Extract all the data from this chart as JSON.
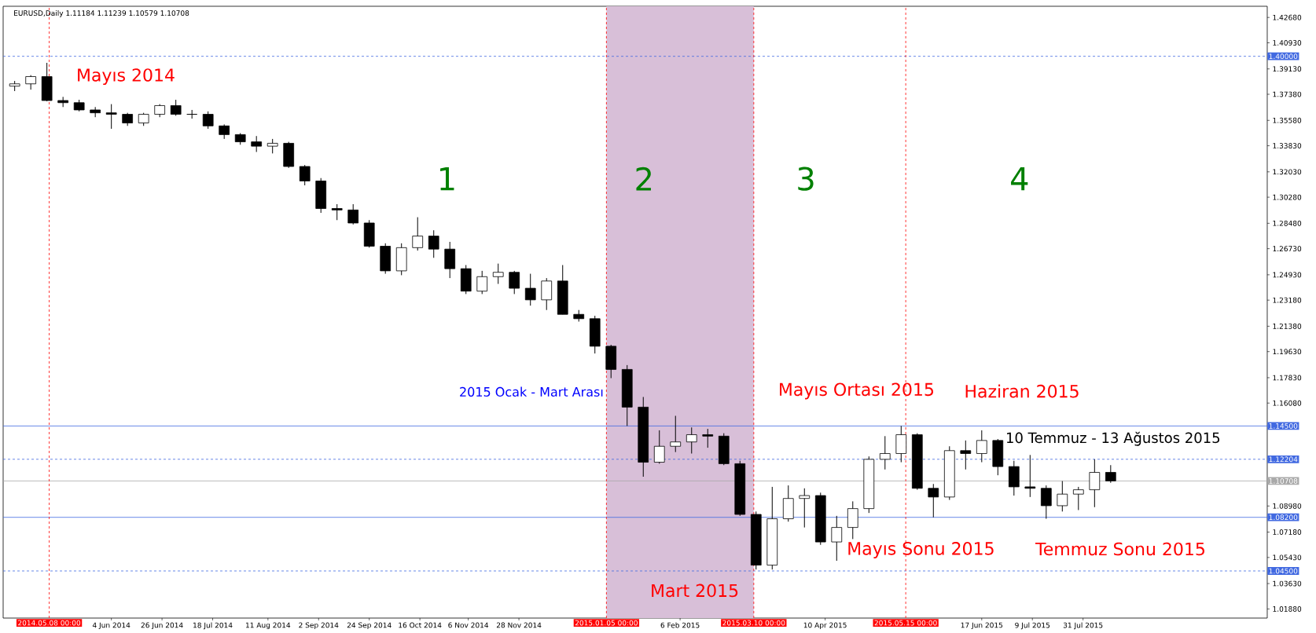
{
  "chart_data": {
    "type": "candlestick",
    "title": "EURUSD,Daily  1.11184 1.11239 1.10579 1.10708",
    "color": "#000000",
    "x": [
      "2014-04-23",
      "2014-04-30",
      "2014-05-07",
      "2014-05-14",
      "2014-05-21",
      "2014-05-28",
      "2014-06-04",
      "2014-06-11",
      "2014-06-18",
      "2014-06-25",
      "2014-07-02",
      "2014-07-09",
      "2014-07-16",
      "2014-07-23",
      "2014-07-30",
      "2014-08-06",
      "2014-08-13",
      "2014-08-20",
      "2014-08-27",
      "2014-09-03",
      "2014-09-10",
      "2014-09-17",
      "2014-09-24",
      "2014-10-01",
      "2014-10-08",
      "2014-10-15",
      "2014-10-22",
      "2014-10-29",
      "2014-11-05",
      "2014-11-12",
      "2014-11-19",
      "2014-11-26",
      "2014-12-03",
      "2014-12-10",
      "2014-12-17",
      "2014-12-24",
      "2014-12-31",
      "2015-01-07",
      "2015-01-14",
      "2015-01-21",
      "2015-01-28",
      "2015-02-04",
      "2015-02-11",
      "2015-02-18",
      "2015-02-25",
      "2015-03-04",
      "2015-03-11",
      "2015-03-18",
      "2015-03-25",
      "2015-04-01",
      "2015-04-08",
      "2015-04-15",
      "2015-04-22",
      "2015-04-29",
      "2015-05-06",
      "2015-05-13",
      "2015-05-20",
      "2015-05-27",
      "2015-06-03",
      "2015-06-10",
      "2015-06-17",
      "2015-06-24",
      "2015-07-01",
      "2015-07-08",
      "2015-07-15",
      "2015-07-22",
      "2015-07-29",
      "2015-08-05",
      "2015-08-12"
    ],
    "ohlc": [
      [
        1.3794,
        1.383,
        1.376,
        1.381
      ],
      [
        1.381,
        1.387,
        1.377,
        1.386
      ],
      [
        1.386,
        1.3955,
        1.369,
        1.3695
      ],
      [
        1.3695,
        1.372,
        1.365,
        1.368
      ],
      [
        1.368,
        1.37,
        1.362,
        1.363
      ],
      [
        1.363,
        1.365,
        1.358,
        1.361
      ],
      [
        1.361,
        1.367,
        1.35,
        1.36
      ],
      [
        1.36,
        1.361,
        1.352,
        1.354
      ],
      [
        1.354,
        1.361,
        1.352,
        1.36
      ],
      [
        1.36,
        1.367,
        1.358,
        1.366
      ],
      [
        1.366,
        1.37,
        1.359,
        1.36
      ],
      [
        1.36,
        1.363,
        1.357,
        1.36
      ],
      [
        1.36,
        1.362,
        1.35,
        1.352
      ],
      [
        1.352,
        1.353,
        1.343,
        1.346
      ],
      [
        1.346,
        1.347,
        1.339,
        1.341
      ],
      [
        1.341,
        1.345,
        1.334,
        1.338
      ],
      [
        1.338,
        1.343,
        1.333,
        1.34
      ],
      [
        1.34,
        1.341,
        1.323,
        1.324
      ],
      [
        1.324,
        1.325,
        1.311,
        1.314
      ],
      [
        1.314,
        1.316,
        1.292,
        1.295
      ],
      [
        1.295,
        1.298,
        1.287,
        1.294
      ],
      [
        1.294,
        1.298,
        1.284,
        1.285
      ],
      [
        1.285,
        1.287,
        1.268,
        1.269
      ],
      [
        1.269,
        1.271,
        1.25,
        1.252
      ],
      [
        1.252,
        1.271,
        1.249,
        1.268
      ],
      [
        1.268,
        1.289,
        1.266,
        1.276
      ],
      [
        1.276,
        1.28,
        1.261,
        1.267
      ],
      [
        1.267,
        1.272,
        1.247,
        1.2535
      ],
      [
        1.2535,
        1.256,
        1.236,
        1.238
      ],
      [
        1.238,
        1.252,
        1.236,
        1.248
      ],
      [
        1.248,
        1.257,
        1.243,
        1.251
      ],
      [
        1.251,
        1.252,
        1.236,
        1.24
      ],
      [
        1.24,
        1.25,
        1.228,
        1.232
      ],
      [
        1.232,
        1.247,
        1.225,
        1.245
      ],
      [
        1.245,
        1.256,
        1.222,
        1.222
      ],
      [
        1.222,
        1.225,
        1.217,
        1.219
      ],
      [
        1.219,
        1.221,
        1.195,
        1.2
      ],
      [
        1.2,
        1.201,
        1.178,
        1.184
      ],
      [
        1.184,
        1.187,
        1.145,
        1.158
      ],
      [
        1.158,
        1.165,
        1.11,
        1.12
      ],
      [
        1.12,
        1.142,
        1.119,
        1.131
      ],
      [
        1.131,
        1.152,
        1.127,
        1.134
      ],
      [
        1.134,
        1.144,
        1.126,
        1.139
      ],
      [
        1.139,
        1.143,
        1.13,
        1.138
      ],
      [
        1.138,
        1.14,
        1.118,
        1.119
      ],
      [
        1.119,
        1.121,
        1.083,
        1.084
      ],
      [
        1.084,
        1.086,
        1.046,
        1.049
      ],
      [
        1.049,
        1.103,
        1.046,
        1.081
      ],
      [
        1.081,
        1.104,
        1.079,
        1.095
      ],
      [
        1.095,
        1.102,
        1.075,
        1.097
      ],
      [
        1.097,
        1.099,
        1.063,
        1.065
      ],
      [
        1.065,
        1.083,
        1.052,
        1.075
      ],
      [
        1.075,
        1.093,
        1.067,
        1.088
      ],
      [
        1.088,
        1.124,
        1.085,
        1.122
      ],
      [
        1.122,
        1.138,
        1.115,
        1.126
      ],
      [
        1.126,
        1.145,
        1.12,
        1.139
      ],
      [
        1.139,
        1.14,
        1.101,
        1.102
      ],
      [
        1.102,
        1.105,
        1.082,
        1.096
      ],
      [
        1.096,
        1.131,
        1.094,
        1.128
      ],
      [
        1.128,
        1.135,
        1.115,
        1.126
      ],
      [
        1.126,
        1.142,
        1.12,
        1.135
      ],
      [
        1.135,
        1.136,
        1.111,
        1.117
      ],
      [
        1.117,
        1.121,
        1.097,
        1.103
      ],
      [
        1.103,
        1.125,
        1.096,
        1.102
      ],
      [
        1.102,
        1.104,
        1.081,
        1.09
      ],
      [
        1.09,
        1.107,
        1.086,
        1.098
      ],
      [
        1.098,
        1.103,
        1.087,
        1.101
      ],
      [
        1.101,
        1.122,
        1.089,
        1.113
      ],
      [
        1.113,
        1.118,
        1.1058,
        1.1071
      ]
    ],
    "xlim": [
      "2014-04-18",
      "2015-10-19"
    ],
    "ylim": [
      1.0125,
      1.4345
    ],
    "xticks": [
      {
        "value": "2014-06-04",
        "label": "4 Jun 2014"
      },
      {
        "value": "2014-06-26",
        "label": "26 Jun 2014"
      },
      {
        "value": "2014-07-18",
        "label": "18 Jul 2014"
      },
      {
        "value": "2014-08-11",
        "label": "11 Aug 2014"
      },
      {
        "value": "2014-09-02",
        "label": "2 Sep 2014"
      },
      {
        "value": "2014-09-24",
        "label": "24 Sep 2014"
      },
      {
        "value": "2014-10-16",
        "label": "16 Oct 2014"
      },
      {
        "value": "2014-11-06",
        "label": "6 Nov 2014"
      },
      {
        "value": "2014-11-28",
        "label": "28 Nov 2014"
      },
      {
        "value": "2015-02-06",
        "label": "6 Feb 2015"
      },
      {
        "value": "2015-04-10",
        "label": "10 Apr 2015"
      },
      {
        "value": "2015-06-17",
        "label": "17 Jun 2015"
      },
      {
        "value": "2015-07-09",
        "label": "9 Jul 2015"
      },
      {
        "value": "2015-07-31",
        "label": "31 Jul 2015"
      }
    ],
    "yticks": [
      {
        "value": 1.4268,
        "label": "1.42680"
      },
      {
        "value": 1.4093,
        "label": "1.40930"
      },
      {
        "value": 1.3913,
        "label": "1.39130"
      },
      {
        "value": 1.3738,
        "label": "1.37380"
      },
      {
        "value": 1.3558,
        "label": "1.35580"
      },
      {
        "value": 1.3383,
        "label": "1.33830"
      },
      {
        "value": 1.3203,
        "label": "1.32030"
      },
      {
        "value": 1.3028,
        "label": "1.30280"
      },
      {
        "value": 1.2848,
        "label": "1.28480"
      },
      {
        "value": 1.2673,
        "label": "1.26730"
      },
      {
        "value": 1.2493,
        "label": "1.24930"
      },
      {
        "value": 1.2318,
        "label": "1.23180"
      },
      {
        "value": 1.2138,
        "label": "1.21380"
      },
      {
        "value": 1.1963,
        "label": "1.19630"
      },
      {
        "value": 1.1783,
        "label": "1.17830"
      },
      {
        "value": 1.1608,
        "label": "1.16080"
      },
      {
        "value": 1.0898,
        "label": "1.08980"
      },
      {
        "value": 1.0718,
        "label": "1.07180"
      },
      {
        "value": 1.0543,
        "label": "1.05430"
      },
      {
        "value": 1.0363,
        "label": "1.03630"
      },
      {
        "value": 1.0188,
        "label": "1.01880"
      }
    ],
    "ref_lines": [
      {
        "axis": "y",
        "value": 1.4,
        "label": "1.40000",
        "color": "#4169e1",
        "line_style": "dashed"
      },
      {
        "axis": "y",
        "value": 1.145,
        "label": "1.14500",
        "color": "#4169e1",
        "line_style": "solid"
      },
      {
        "axis": "y",
        "value": 1.12204,
        "label": "1.12204",
        "color": "#4169e1",
        "line_style": "dashed"
      },
      {
        "axis": "y",
        "value": 1.10708,
        "label": "1.10708",
        "color": "#a9a9a9",
        "line_style": "solid"
      },
      {
        "axis": "y",
        "value": 1.082,
        "label": "1.08200",
        "color": "#4169e1",
        "line_style": "solid"
      },
      {
        "axis": "y",
        "value": 1.045,
        "label": "1.04500",
        "color": "#4169e1",
        "line_style": "dashed"
      },
      {
        "axis": "x",
        "value": "2014-05-08",
        "label": "2014.05.08 00:00",
        "color": "#ff0000",
        "line_style": "dashed"
      },
      {
        "axis": "x",
        "value": "2015-01-05",
        "label": "2015.01.05 00:00",
        "color": "#ff0000",
        "line_style": "dashed"
      },
      {
        "axis": "x",
        "value": "2015-03-10",
        "label": "2015.03.10 00:00",
        "color": "#ff0000",
        "line_style": "dashed"
      },
      {
        "axis": "x",
        "value": "2015-05-15",
        "label": "2015.05.15 00:00",
        "color": "#ff0000",
        "line_style": "dashed"
      }
    ],
    "bands": [
      {
        "axis": "x",
        "from": "2015-01-05",
        "to": "2015-03-10",
        "label": "2015 Ocak - Mart Arası",
        "color": "#d8bfd8"
      }
    ],
    "annotations": [
      "Mayıs 2014",
      "1",
      "2",
      "3",
      "4",
      "Mayıs Ortası 2015",
      "Haziran 2015",
      "10 Temmuz - 13 Ağustos 2015",
      "Mayıs Sonu 2015",
      "Temmuz Sonu 2015",
      "Mart 2015"
    ]
  }
}
